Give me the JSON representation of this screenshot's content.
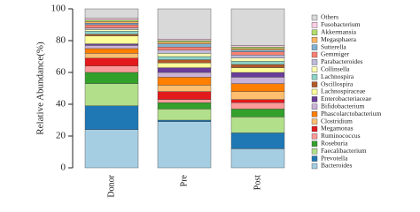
{
  "chart_data": {
    "type": "stacked_bar",
    "ylabel": "Relative Abundance(%)",
    "categories": [
      "Donor",
      "Pre",
      "Post"
    ],
    "ylim": [
      0,
      100
    ],
    "yticks": [
      0,
      20,
      40,
      60,
      80,
      100
    ],
    "series": [
      {
        "name": "Bacteroides",
        "color": "#a6cee3",
        "values": [
          24,
          29,
          12
        ]
      },
      {
        "name": "Prevotella",
        "color": "#1f78b4",
        "values": [
          15,
          1,
          10
        ]
      },
      {
        "name": "Faecalibacterium",
        "color": "#b2df8a",
        "values": [
          14,
          7,
          10
        ]
      },
      {
        "name": "Roseburia",
        "color": "#33a02c",
        "values": [
          7,
          4,
          5
        ]
      },
      {
        "name": "Ruminococcus",
        "color": "#fb9a99",
        "values": [
          4,
          2,
          4
        ]
      },
      {
        "name": "Megamonas",
        "color": "#e31a1c",
        "values": [
          5,
          5,
          2
        ]
      },
      {
        "name": "Clostridium",
        "color": "#fdbf6f",
        "values": [
          3,
          4,
          5
        ]
      },
      {
        "name": "Phascolarctobacterium",
        "color": "#ff7f00",
        "values": [
          3,
          5,
          5
        ]
      },
      {
        "name": "Bifidobacterium",
        "color": "#cab2d6",
        "values": [
          2,
          3,
          4
        ]
      },
      {
        "name": "Enterobacteriaceae",
        "color": "#6a3d9a",
        "values": [
          1,
          3,
          3
        ]
      },
      {
        "name": "Lachnospiraceae",
        "color": "#ffff99",
        "values": [
          5,
          3,
          3
        ]
      },
      {
        "name": "Oscillospira",
        "color": "#b15928",
        "values": [
          1,
          2,
          2
        ]
      },
      {
        "name": "Lachnospira",
        "color": "#8dd3c7",
        "values": [
          2,
          2,
          2
        ]
      },
      {
        "name": "Collinsella",
        "color": "#ffffb3",
        "values": [
          1,
          2,
          2
        ]
      },
      {
        "name": "Parabacteroides",
        "color": "#bebada",
        "values": [
          1,
          2,
          2
        ]
      },
      {
        "name": "Gemmiger",
        "color": "#fb8072",
        "values": [
          2,
          2,
          2
        ]
      },
      {
        "name": "Sutterella",
        "color": "#80b1d3",
        "values": [
          1,
          2,
          1
        ]
      },
      {
        "name": "Megasphaera",
        "color": "#fdb462",
        "values": [
          1,
          1,
          1
        ]
      },
      {
        "name": "Akkermansia",
        "color": "#b3de69",
        "values": [
          1,
          1,
          1
        ]
      },
      {
        "name": "Fusobacterium",
        "color": "#fccde5",
        "values": [
          1,
          1,
          1
        ]
      },
      {
        "name": "Others",
        "color": "#d9d9d9",
        "values": [
          6,
          19,
          23
        ]
      }
    ]
  }
}
